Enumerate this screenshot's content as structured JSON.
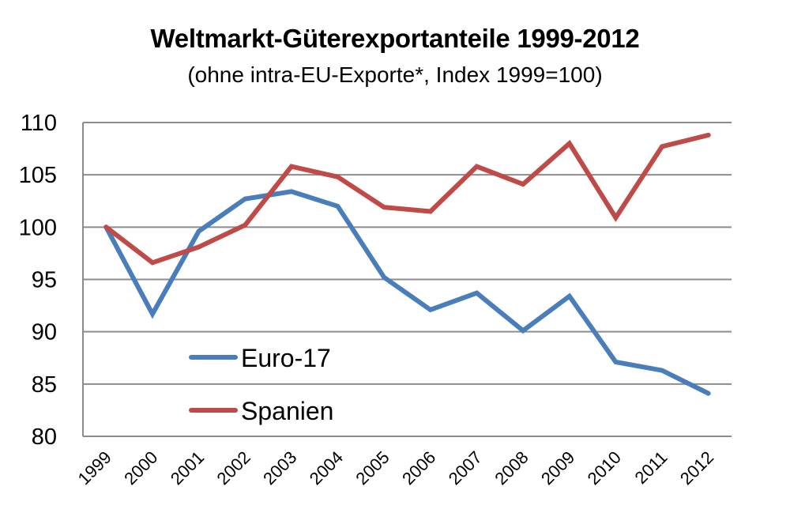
{
  "chart_data": {
    "type": "line",
    "title": "Weltmarkt-Güterexportanteile 1999-2012",
    "subtitle": "(ohne intra-EU-Exporte*, Index 1999=100)",
    "xlabel": "",
    "ylabel": "",
    "ylim": [
      80,
      110
    ],
    "yticks": [
      80,
      85,
      90,
      95,
      100,
      105,
      110
    ],
    "ytick_labels": [
      "80",
      "85",
      "90",
      "95",
      "100",
      "105",
      "110"
    ],
    "grid": true,
    "legend_position": "lower-left",
    "categories": [
      "1999",
      "2000",
      "2001",
      "2002",
      "2003",
      "2004",
      "2005",
      "2006",
      "2007",
      "2008",
      "2009",
      "2010",
      "2011",
      "2012"
    ],
    "series": [
      {
        "name": "Euro-17",
        "color": "#4a7ebb",
        "values": [
          100,
          91.7,
          99.6,
          102.7,
          103.4,
          102.0,
          95.2,
          92.1,
          93.7,
          90.1,
          93.4,
          87.1,
          86.3,
          84.1
        ]
      },
      {
        "name": "Spanien",
        "color": "#be4b48",
        "values": [
          100,
          96.6,
          98.1,
          100.2,
          105.8,
          104.8,
          101.9,
          101.5,
          105.8,
          104.1,
          108.0,
          100.9,
          107.7,
          108.8
        ]
      }
    ]
  },
  "colors": {
    "grid": "#8c8c8c",
    "axis": "#8c8c8c",
    "text": "#000000"
  }
}
